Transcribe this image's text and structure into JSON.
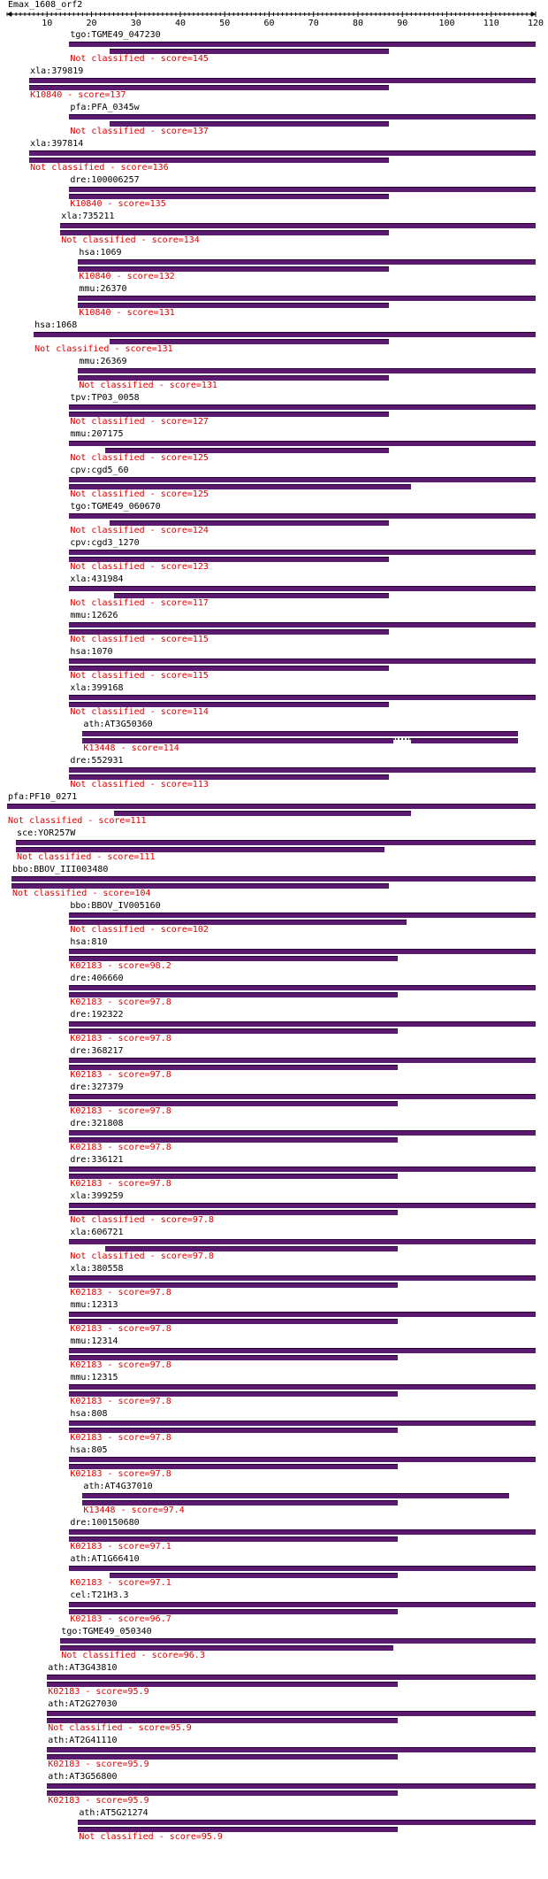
{
  "chart_data": {
    "type": "alignment",
    "title": "Emax_1608_orf2",
    "axis": {
      "min": 1,
      "max": 120,
      "ticks": [
        10,
        20,
        30,
        40,
        50,
        60,
        70,
        80,
        90,
        100,
        110,
        120
      ]
    },
    "colors": {
      "bar": "#5a1a6e",
      "classification": "#e00000",
      "name": "#000000"
    },
    "hits": [
      {
        "name": "tgo:TGME49_047230",
        "label": "Not classified - score=145",
        "qstart": 15,
        "qend": 120,
        "hstart": 24,
        "hend": 87
      },
      {
        "name": "xla:379819",
        "label": "K10840 - score=137",
        "qstart": 6,
        "qend": 120,
        "hstart": 6,
        "hend": 87
      },
      {
        "name": "pfa:PFA_0345w",
        "label": "Not classified - score=137",
        "qstart": 15,
        "qend": 120,
        "hstart": 24,
        "hend": 87
      },
      {
        "name": "xla:397814",
        "label": "Not classified - score=136",
        "qstart": 6,
        "qend": 120,
        "hstart": 6,
        "hend": 87
      },
      {
        "name": "dre:100006257",
        "label": "K10840 - score=135",
        "qstart": 15,
        "qend": 120,
        "hstart": 15,
        "hend": 87
      },
      {
        "name": "xla:735211",
        "label": "Not classified - score=134",
        "qstart": 13,
        "qend": 120,
        "hstart": 13,
        "hend": 87
      },
      {
        "name": "hsa:1069",
        "label": "K10840 - score=132",
        "qstart": 17,
        "qend": 120,
        "hstart": 17,
        "hend": 87
      },
      {
        "name": "mmu:26370",
        "label": "K10840 - score=131",
        "qstart": 17,
        "qend": 120,
        "hstart": 17,
        "hend": 87
      },
      {
        "name": "hsa:1068",
        "label": "Not classified - score=131",
        "qstart": 7,
        "qend": 120,
        "hstart": 24,
        "hend": 87
      },
      {
        "name": "mmu:26369",
        "label": "Not classified - score=131",
        "qstart": 17,
        "qend": 120,
        "hstart": 17,
        "hend": 87
      },
      {
        "name": "tpv:TP03_0058",
        "label": "Not classified - score=127",
        "qstart": 15,
        "qend": 120,
        "hstart": 15,
        "hend": 87
      },
      {
        "name": "mmu:207175",
        "label": "Not classified - score=125",
        "qstart": 15,
        "qend": 120,
        "hstart": 23,
        "hend": 87
      },
      {
        "name": "cpv:cgd5_60",
        "label": "Not classified - score=125",
        "qstart": 15,
        "qend": 120,
        "hstart": 15,
        "hend": 92
      },
      {
        "name": "tgo:TGME49_060670",
        "label": "Not classified - score=124",
        "qstart": 15,
        "qend": 120,
        "hstart": 24,
        "hend": 87
      },
      {
        "name": "cpv:cgd3_1270",
        "label": "Not classified - score=123",
        "qstart": 15,
        "qend": 120,
        "hstart": 15,
        "hend": 87
      },
      {
        "name": "xla:431984",
        "label": "Not classified - score=117",
        "qstart": 15,
        "qend": 120,
        "hstart": 25,
        "hend": 87
      },
      {
        "name": "mmu:12626",
        "label": "Not classified - score=115",
        "qstart": 15,
        "qend": 120,
        "hstart": 15,
        "hend": 87
      },
      {
        "name": "hsa:1070",
        "label": "Not classified - score=115",
        "qstart": 15,
        "qend": 120,
        "hstart": 15,
        "hend": 87
      },
      {
        "name": "xla:399168",
        "label": "Not classified - score=114",
        "qstart": 15,
        "qend": 120,
        "hstart": 15,
        "hend": 87
      },
      {
        "name": "ath:AT3G50360",
        "label": "K13448 - score=114",
        "qstart": 18,
        "qend": 116,
        "hstart": 18,
        "hend": 88,
        "gap": [
          88,
          92
        ]
      },
      {
        "name": "dre:552931",
        "label": "Not classified - score=113",
        "qstart": 15,
        "qend": 120,
        "hstart": 15,
        "hend": 87
      },
      {
        "name": "pfa:PF10_0271",
        "label": "Not classified - score=111",
        "qstart": 1,
        "qend": 120,
        "hstart": 25,
        "hend": 92
      },
      {
        "name": "sce:YOR257W",
        "label": "Not classified - score=111",
        "qstart": 3,
        "qend": 120,
        "hstart": 3,
        "hend": 86
      },
      {
        "name": "bbo:BBOV_III003480",
        "label": "Not classified - score=104",
        "qstart": 2,
        "qend": 120,
        "hstart": 2,
        "hend": 87
      },
      {
        "name": "bbo:BBOV_IV005160",
        "label": "Not classified - score=102",
        "qstart": 15,
        "qend": 120,
        "hstart": 15,
        "hend": 91
      },
      {
        "name": "hsa:810",
        "label": "K02183 - score=98.2",
        "qstart": 15,
        "qend": 120,
        "hstart": 15,
        "hend": 89
      },
      {
        "name": "dre:406660",
        "label": "K02183 - score=97.8",
        "qstart": 15,
        "qend": 120,
        "hstart": 15,
        "hend": 89
      },
      {
        "name": "dre:192322",
        "label": "K02183 - score=97.8",
        "qstart": 15,
        "qend": 120,
        "hstart": 15,
        "hend": 89
      },
      {
        "name": "dre:368217",
        "label": "K02183 - score=97.8",
        "qstart": 15,
        "qend": 120,
        "hstart": 15,
        "hend": 89
      },
      {
        "name": "dre:327379",
        "label": "K02183 - score=97.8",
        "qstart": 15,
        "qend": 120,
        "hstart": 15,
        "hend": 89
      },
      {
        "name": "dre:321808",
        "label": "K02183 - score=97.8",
        "qstart": 15,
        "qend": 120,
        "hstart": 15,
        "hend": 89
      },
      {
        "name": "dre:336121",
        "label": "K02183 - score=97.8",
        "qstart": 15,
        "qend": 120,
        "hstart": 15,
        "hend": 89
      },
      {
        "name": "xla:399259",
        "label": "Not classified - score=97.8",
        "qstart": 15,
        "qend": 120,
        "hstart": 15,
        "hend": 89
      },
      {
        "name": "xla:606721",
        "label": "Not classified - score=97.8",
        "qstart": 15,
        "qend": 120,
        "hstart": 23,
        "hend": 89
      },
      {
        "name": "xla:380558",
        "label": "K02183 - score=97.8",
        "qstart": 15,
        "qend": 120,
        "hstart": 15,
        "hend": 89
      },
      {
        "name": "mmu:12313",
        "label": "K02183 - score=97.8",
        "qstart": 15,
        "qend": 120,
        "hstart": 15,
        "hend": 89
      },
      {
        "name": "mmu:12314",
        "label": "K02183 - score=97.8",
        "qstart": 15,
        "qend": 120,
        "hstart": 15,
        "hend": 89
      },
      {
        "name": "mmu:12315",
        "label": "K02183 - score=97.8",
        "qstart": 15,
        "qend": 120,
        "hstart": 15,
        "hend": 89
      },
      {
        "name": "hsa:808",
        "label": "K02183 - score=97.8",
        "qstart": 15,
        "qend": 120,
        "hstart": 15,
        "hend": 89
      },
      {
        "name": "hsa:805",
        "label": "K02183 - score=97.8",
        "qstart": 15,
        "qend": 120,
        "hstart": 15,
        "hend": 89
      },
      {
        "name": "ath:AT4G37010",
        "label": "K13448 - score=97.4",
        "qstart": 18,
        "qend": 114,
        "hstart": 18,
        "hend": 89
      },
      {
        "name": "dre:100150680",
        "label": "K02183 - score=97.1",
        "qstart": 15,
        "qend": 120,
        "hstart": 15,
        "hend": 89
      },
      {
        "name": "ath:AT1G66410",
        "label": "K02183 - score=97.1",
        "qstart": 15,
        "qend": 120,
        "hstart": 24,
        "hend": 89
      },
      {
        "name": "cel:T21H3.3",
        "label": "K02183 - score=96.7",
        "qstart": 15,
        "qend": 120,
        "hstart": 15,
        "hend": 89
      },
      {
        "name": "tgo:TGME49_050340",
        "label": "Not classified - score=96.3",
        "qstart": 13,
        "qend": 120,
        "hstart": 13,
        "hend": 88
      },
      {
        "name": "ath:AT3G43810",
        "label": "K02183 - score=95.9",
        "qstart": 10,
        "qend": 120,
        "hstart": 10,
        "hend": 89
      },
      {
        "name": "ath:AT2G27030",
        "label": "Not classified - score=95.9",
        "qstart": 10,
        "qend": 120,
        "hstart": 10,
        "hend": 89
      },
      {
        "name": "ath:AT2G41110",
        "label": "K02183 - score=95.9",
        "qstart": 10,
        "qend": 120,
        "hstart": 10,
        "hend": 89
      },
      {
        "name": "ath:AT3G56800",
        "label": "K02183 - score=95.9",
        "qstart": 10,
        "qend": 120,
        "hstart": 10,
        "hend": 89
      },
      {
        "name": "ath:AT5G21274",
        "label": "Not classified - score=95.9",
        "qstart": 17,
        "qend": 120,
        "hstart": 17,
        "hend": 89
      }
    ]
  }
}
